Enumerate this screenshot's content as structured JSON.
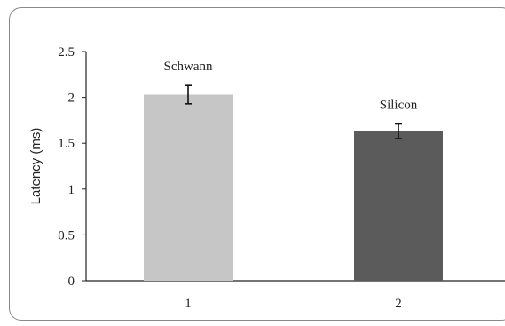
{
  "chart_data": {
    "type": "bar",
    "categories": [
      "1",
      "2"
    ],
    "values": [
      2.03,
      1.63
    ],
    "errors": [
      0.1,
      0.08
    ],
    "bar_labels": [
      "Schwann",
      "Silicon"
    ],
    "bar_colors": [
      "#c6c6c6",
      "#5b5b5b"
    ],
    "ylabel": "Latency (ms)",
    "yticks": [
      "0",
      "0.5",
      "1",
      "1.5",
      "2",
      "2.5"
    ],
    "ylim": [
      0,
      2.5
    ],
    "grid": false
  }
}
